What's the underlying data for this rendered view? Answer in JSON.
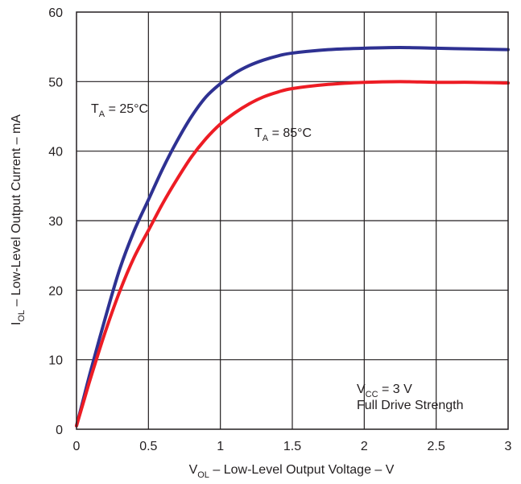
{
  "chart_data": {
    "type": "line",
    "x": [
      0,
      0.05,
      0.1,
      0.2,
      0.3,
      0.4,
      0.5,
      0.6,
      0.7,
      0.8,
      0.9,
      1.0,
      1.1,
      1.2,
      1.3,
      1.4,
      1.5,
      1.75,
      2.0,
      2.25,
      2.5,
      2.75,
      3.0
    ],
    "series": [
      {
        "temp_label": "25°C",
        "color": "#2e3192",
        "values": [
          0.5,
          4.5,
          8.5,
          16,
          23,
          28.5,
          33,
          37.5,
          41.5,
          45,
          47.8,
          49.7,
          51.2,
          52.3,
          53.1,
          53.7,
          54.1,
          54.6,
          54.8,
          54.9,
          54.8,
          54.7,
          54.6
        ]
      },
      {
        "temp_label": "85°C",
        "color": "#ed1c24",
        "values": [
          0.5,
          4,
          7.5,
          14,
          19.8,
          24.7,
          28.6,
          32.5,
          36,
          39.2,
          41.8,
          43.9,
          45.5,
          46.8,
          47.8,
          48.5,
          49.0,
          49.6,
          49.9,
          50.0,
          49.9,
          49.9,
          49.8
        ]
      }
    ],
    "xlim": [
      0,
      3
    ],
    "ylim": [
      0,
      60
    ],
    "x_ticks": [
      "0",
      "0.5",
      "1",
      "1.5",
      "2",
      "2.5",
      "3"
    ],
    "y_ticks": [
      "0",
      "10",
      "20",
      "30",
      "40",
      "50",
      "60"
    ],
    "grid": true,
    "xlabel": {
      "pre": "V",
      "sub": "OL",
      "post": " – Low-Level Output Voltage – V"
    },
    "ylabel": {
      "pre": "I",
      "sub": "OL",
      "post": " – Low-Level Output Current – mA"
    },
    "annotations": {
      "t25": {
        "pre": "T",
        "sub": "A",
        "post": " = 25°C"
      },
      "t85": {
        "pre": "T",
        "sub": "A",
        "post": " = 85°C"
      },
      "vcc": {
        "pre": "V",
        "sub": "CC",
        "post": " = 3 V"
      },
      "drive": "Full Drive Strength"
    }
  }
}
